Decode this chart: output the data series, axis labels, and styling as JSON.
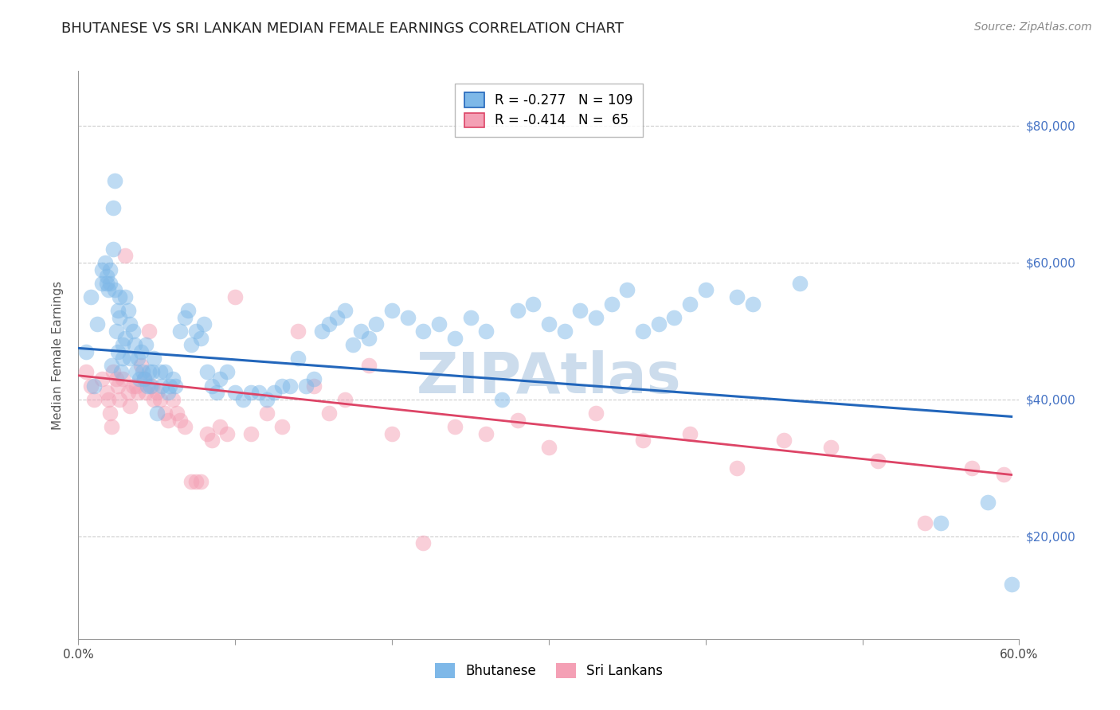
{
  "title": "BHUTANESE VS SRI LANKAN MEDIAN FEMALE EARNINGS CORRELATION CHART",
  "source": "Source: ZipAtlas.com",
  "ylabel": "Median Female Earnings",
  "yticks": [
    20000,
    40000,
    60000,
    80000
  ],
  "ytick_labels": [
    "$20,000",
    "$40,000",
    "$60,000",
    "$80,000"
  ],
  "ytick_color": "#4472c4",
  "xmin": 0.0,
  "xmax": 0.6,
  "ymin": 5000,
  "ymax": 88000,
  "blue_R": "-0.277",
  "blue_N": "109",
  "pink_R": "-0.414",
  "pink_N": " 65",
  "blue_color": "#7eb8e8",
  "pink_color": "#f4a0b5",
  "blue_line_color": "#2266bb",
  "pink_line_color": "#dd4466",
  "legend_blue_label": "Bhutanese",
  "legend_pink_label": "Sri Lankans",
  "watermark": "ZIPAtlas",
  "blue_scatter_x": [
    0.005,
    0.008,
    0.01,
    0.012,
    0.015,
    0.015,
    0.017,
    0.018,
    0.018,
    0.019,
    0.02,
    0.02,
    0.021,
    0.022,
    0.022,
    0.023,
    0.023,
    0.024,
    0.025,
    0.025,
    0.026,
    0.026,
    0.027,
    0.028,
    0.028,
    0.03,
    0.03,
    0.032,
    0.033,
    0.033,
    0.035,
    0.036,
    0.037,
    0.038,
    0.039,
    0.04,
    0.041,
    0.042,
    0.043,
    0.044,
    0.045,
    0.046,
    0.047,
    0.048,
    0.05,
    0.052,
    0.053,
    0.055,
    0.057,
    0.058,
    0.06,
    0.062,
    0.065,
    0.068,
    0.07,
    0.072,
    0.075,
    0.078,
    0.08,
    0.082,
    0.085,
    0.088,
    0.09,
    0.095,
    0.1,
    0.105,
    0.11,
    0.115,
    0.12,
    0.125,
    0.13,
    0.135,
    0.14,
    0.145,
    0.15,
    0.155,
    0.16,
    0.165,
    0.17,
    0.175,
    0.18,
    0.185,
    0.19,
    0.2,
    0.21,
    0.22,
    0.23,
    0.24,
    0.25,
    0.26,
    0.27,
    0.28,
    0.29,
    0.3,
    0.31,
    0.32,
    0.33,
    0.34,
    0.35,
    0.36,
    0.37,
    0.38,
    0.39,
    0.4,
    0.42,
    0.43,
    0.46,
    0.55,
    0.58,
    0.595
  ],
  "blue_scatter_y": [
    47000,
    55000,
    42000,
    51000,
    57000,
    59000,
    60000,
    58000,
    57000,
    56000,
    59000,
    57000,
    45000,
    62000,
    68000,
    72000,
    56000,
    50000,
    53000,
    47000,
    55000,
    52000,
    44000,
    46000,
    48000,
    55000,
    49000,
    53000,
    51000,
    46000,
    50000,
    48000,
    44000,
    46000,
    43000,
    47000,
    44000,
    43000,
    48000,
    42000,
    44000,
    42000,
    44000,
    46000,
    38000,
    44000,
    42000,
    44000,
    41000,
    42000,
    43000,
    42000,
    50000,
    52000,
    53000,
    48000,
    50000,
    49000,
    51000,
    44000,
    42000,
    41000,
    43000,
    44000,
    41000,
    40000,
    41000,
    41000,
    40000,
    41000,
    42000,
    42000,
    46000,
    42000,
    43000,
    50000,
    51000,
    52000,
    53000,
    48000,
    50000,
    49000,
    51000,
    53000,
    52000,
    50000,
    51000,
    49000,
    52000,
    50000,
    40000,
    53000,
    54000,
    51000,
    50000,
    53000,
    52000,
    54000,
    56000,
    50000,
    51000,
    52000,
    54000,
    56000,
    55000,
    54000,
    57000,
    22000,
    25000,
    13000
  ],
  "pink_scatter_x": [
    0.005,
    0.008,
    0.01,
    0.015,
    0.018,
    0.019,
    0.02,
    0.021,
    0.022,
    0.024,
    0.025,
    0.026,
    0.028,
    0.03,
    0.032,
    0.033,
    0.035,
    0.037,
    0.038,
    0.04,
    0.042,
    0.043,
    0.045,
    0.047,
    0.048,
    0.05,
    0.052,
    0.055,
    0.057,
    0.06,
    0.063,
    0.065,
    0.068,
    0.072,
    0.075,
    0.078,
    0.082,
    0.085,
    0.09,
    0.095,
    0.1,
    0.11,
    0.12,
    0.13,
    0.14,
    0.15,
    0.16,
    0.17,
    0.185,
    0.2,
    0.22,
    0.24,
    0.26,
    0.28,
    0.3,
    0.33,
    0.36,
    0.39,
    0.42,
    0.45,
    0.48,
    0.51,
    0.54,
    0.57,
    0.59
  ],
  "pink_scatter_y": [
    44000,
    42000,
    40000,
    43000,
    41000,
    40000,
    38000,
    36000,
    44000,
    43000,
    42000,
    40000,
    43000,
    61000,
    41000,
    39000,
    42000,
    42000,
    41000,
    45000,
    43000,
    41000,
    50000,
    42000,
    40000,
    41000,
    40000,
    38000,
    37000,
    40000,
    38000,
    37000,
    36000,
    28000,
    28000,
    28000,
    35000,
    34000,
    36000,
    35000,
    55000,
    35000,
    38000,
    36000,
    50000,
    42000,
    38000,
    40000,
    45000,
    35000,
    19000,
    36000,
    35000,
    37000,
    33000,
    38000,
    34000,
    35000,
    30000,
    34000,
    33000,
    31000,
    22000,
    30000,
    29000
  ],
  "blue_line_x": [
    0.0,
    0.595
  ],
  "blue_line_y": [
    47500,
    37500
  ],
  "pink_line_x": [
    0.0,
    0.595
  ],
  "pink_line_y": [
    43500,
    29000
  ],
  "marker_size": 200,
  "marker_alpha": 0.5,
  "grid_color": "#cccccc",
  "background_color": "#ffffff",
  "title_fontsize": 13,
  "source_fontsize": 10,
  "ylabel_fontsize": 11,
  "ytick_fontsize": 11,
  "xtick_fontsize": 11,
  "legend_fontsize": 12,
  "watermark_color": "#ccdcec",
  "watermark_fontsize": 52,
  "watermark_text": "ZIPAtlas"
}
